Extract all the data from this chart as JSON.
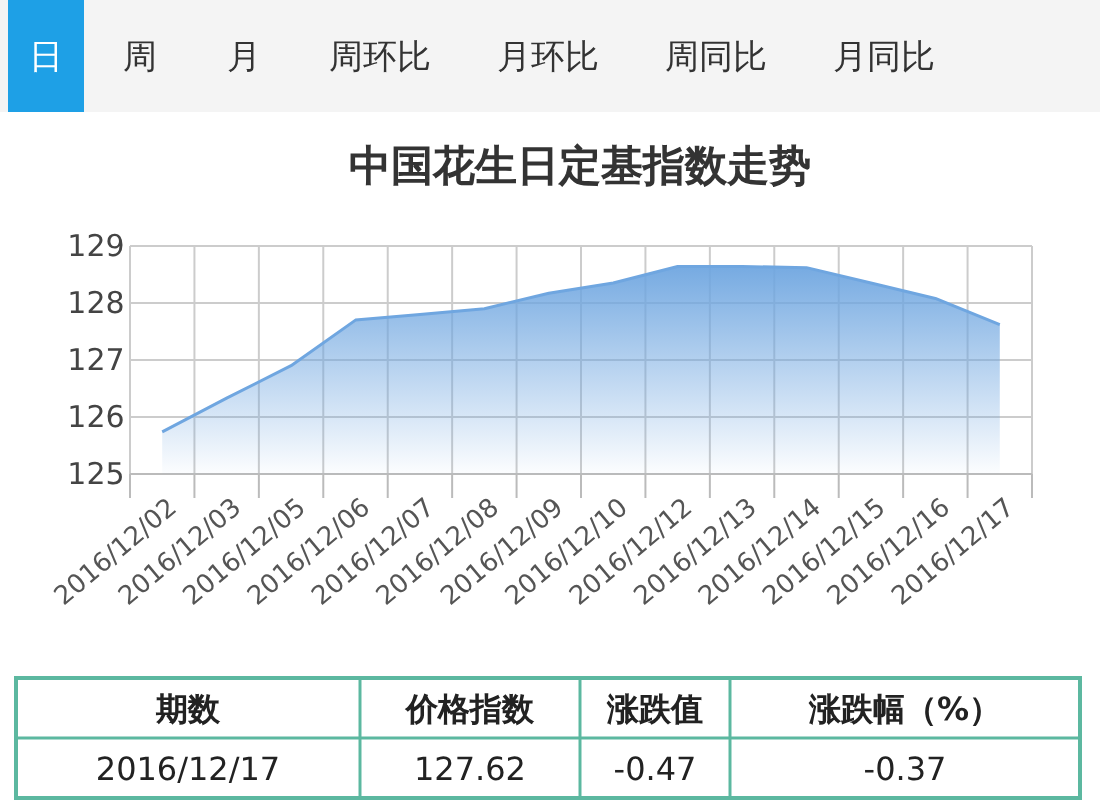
{
  "chart_data": [
    {
      "type": "other",
      "categories": [
        "日",
        "周",
        "月",
        "周环比",
        "月环比",
        "周同比",
        "月同比"
      ]
    },
    {
      "type": "area",
      "title": "中国花生日定基指数走势",
      "categories": [
        "2016/12/02",
        "2016/12/03",
        "2016/12/05",
        "2016/12/06",
        "2016/12/07",
        "2016/12/08",
        "2016/12/09",
        "2016/12/10",
        "2016/12/12",
        "2016/12/13",
        "2016/12/14",
        "2016/12/15",
        "2016/12/16",
        "2016/12/17"
      ],
      "series": [
        {
          "color": "#6fa6e0",
          "values": [
            125.74,
            126.33,
            126.9,
            127.7,
            127.8,
            127.9,
            128.17,
            128.35,
            128.64,
            128.64,
            128.62,
            128.35,
            128.08,
            127.62
          ]
        }
      ],
      "ylim": [
        125,
        129
      ],
      "yticks": [
        125,
        126,
        127,
        128,
        129
      ],
      "grid": true,
      "marker": "none",
      "line_style": "solid"
    },
    {
      "type": "other",
      "categories": [
        "期数",
        "价格指数",
        "涨跌值",
        "涨跌幅（%）"
      ],
      "annotations": [
        "2016/12/17",
        "127.62",
        "-0.47",
        "-0.37"
      ]
    }
  ]
}
